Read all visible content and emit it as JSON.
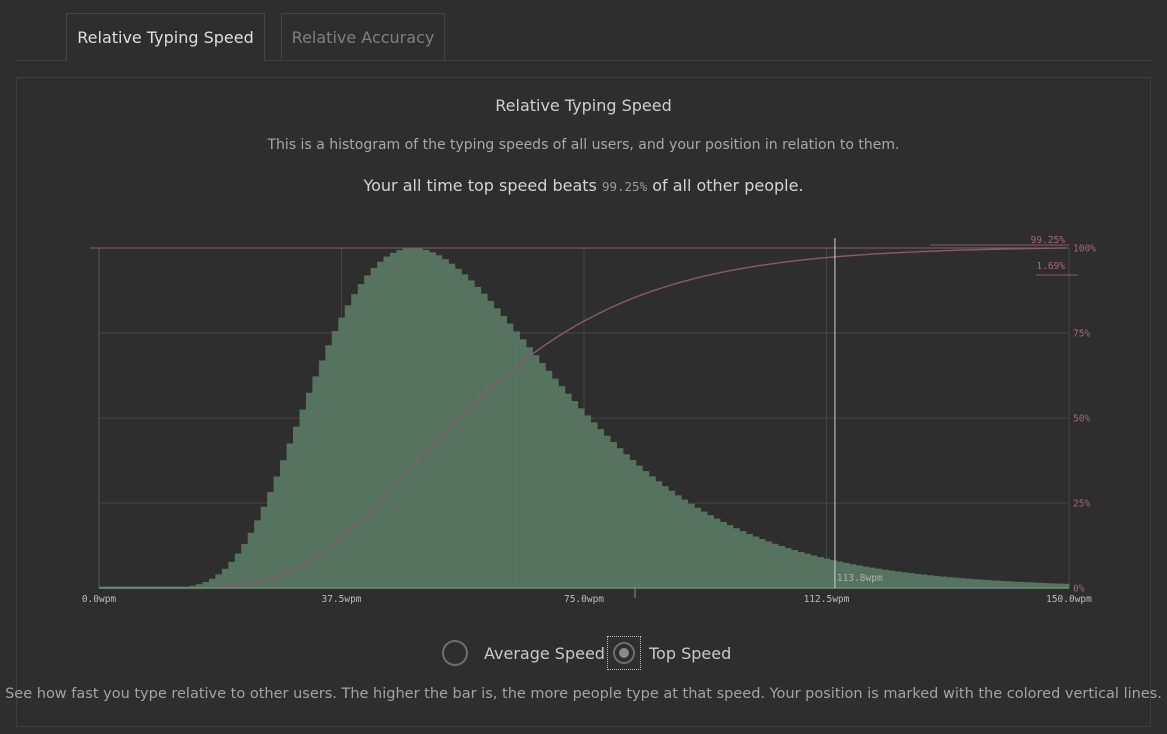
{
  "tabs": [
    {
      "label": "Relative Typing Speed",
      "active": true
    },
    {
      "label": "Relative Accuracy",
      "active": false
    }
  ],
  "panel": {
    "title": "Relative Typing Speed",
    "description": "This is a histogram of the typing speeds of all users, and your position in relation to them.",
    "beats_prefix": "Your all time top speed beats",
    "beats_value": "99.25%",
    "beats_suffix": "of all other people."
  },
  "radios": {
    "average_label": "Average Speed",
    "top_label": "Top Speed",
    "selected": "top"
  },
  "footer": "See how fast you type relative to other users. The higher the bar is, the more people type at that speed. Your position is marked with the colored vertical lines.",
  "colors": {
    "bars": "#55735f",
    "cumulative": "#8a5a6a",
    "percent_labels": "#a2687a",
    "axis": "#555555"
  },
  "chart_data": {
    "type": "bar",
    "x_tick_labels": [
      "0.0wpm",
      "37.5wpm",
      "75.0wpm",
      "112.5wpm",
      "150.0wpm"
    ],
    "y_tick_labels": [
      "0%",
      "25%",
      "50%",
      "75%",
      "100%"
    ],
    "xlim": [
      0,
      150
    ],
    "ylim": [
      0,
      1
    ],
    "bin_width": 1,
    "histogram_shape": {
      "distribution": "lognormal",
      "peak_wpm": 48.5,
      "sigma": 0.38,
      "start_wpm": 7
    },
    "series": [
      {
        "type": "bar",
        "description": "relative frequency of typing speeds"
      },
      {
        "type": "line",
        "description": "cumulative share of users"
      }
    ],
    "marker": {
      "x": 113.8,
      "label": "113.8wpm"
    },
    "annotations": [
      {
        "label": "99.25%",
        "value": 0.9925
      },
      {
        "label": "1.69%",
        "value": 0.0169
      }
    ],
    "grid": true
  }
}
